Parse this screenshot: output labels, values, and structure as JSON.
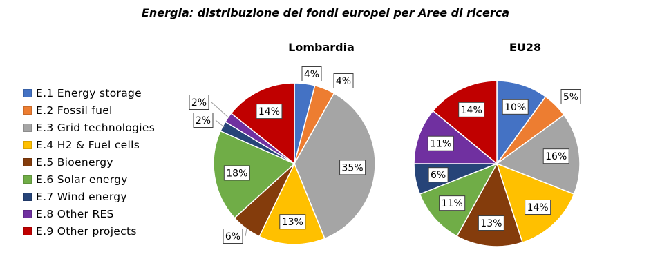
{
  "title": "Energia: distribuzione dei fondi europei per Aree di ricerca",
  "legend": [
    {
      "label": "E.1 Energy storage",
      "color": "#4472C4"
    },
    {
      "label": "E.2 Fossil fuel",
      "color": "#ED7D31"
    },
    {
      "label": "E.3 Grid technologies",
      "color": "#A5A5A5"
    },
    {
      "label": "E.4 H2 & Fuel cells",
      "color": "#FFC000"
    },
    {
      "label": "E.5 Bioenergy",
      "color": "#843C0C"
    },
    {
      "label": "E.6 Solar energy",
      "color": "#70AD47"
    },
    {
      "label": "E.7 Wind energy",
      "color": "#264478"
    },
    {
      "label": "E.8 Other RES",
      "color": "#7030A0"
    },
    {
      "label": "E.9 Other projects",
      "color": "#C00000"
    }
  ],
  "chart_data": [
    {
      "type": "pie",
      "title": "Lombardia",
      "categories": [
        "E.1 Energy storage",
        "E.2 Fossil fuel",
        "E.3 Grid technologies",
        "E.4 H2 & Fuel cells",
        "E.5 Bioenergy",
        "E.6 Solar energy",
        "E.7 Wind energy",
        "E.8 Other RES",
        "E.9 Other projects"
      ],
      "values": [
        4,
        4,
        35,
        13,
        6,
        18,
        2,
        2,
        14
      ],
      "labels": [
        "4%",
        "4%",
        "35%",
        "13%",
        "6%",
        "18%",
        "2%",
        "2%",
        "14%"
      ]
    },
    {
      "type": "pie",
      "title": "EU28",
      "categories": [
        "E.1 Energy storage",
        "E.2 Fossil fuel",
        "E.3 Grid technologies",
        "E.4 H2 & Fuel cells",
        "E.5 Bioenergy",
        "E.6 Solar energy",
        "E.7 Wind energy",
        "E.8 Other RES",
        "E.9 Other projects"
      ],
      "values": [
        10,
        5,
        16,
        14,
        13,
        11,
        6,
        11,
        14
      ],
      "labels": [
        "10%",
        "5%",
        "16%",
        "14%",
        "13%",
        "11%",
        "6%",
        "11%",
        "14%"
      ]
    }
  ]
}
